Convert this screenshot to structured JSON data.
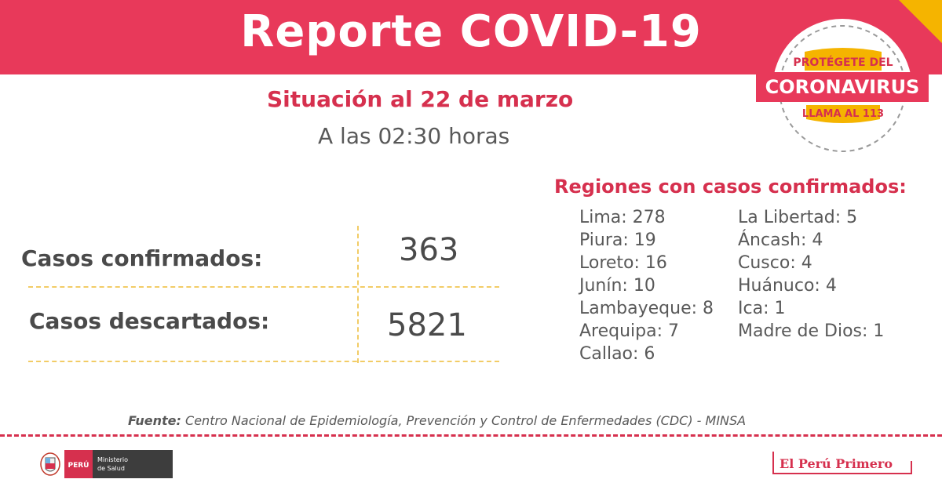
{
  "header": {
    "title": "Reporte COVID-19"
  },
  "situation": {
    "date": "Situación al 22 de marzo",
    "time": "A las 02:30 horas"
  },
  "stats": [
    {
      "label": "Casos confirmados:",
      "value": "363"
    },
    {
      "label": "Casos descartados:",
      "value": "5821"
    }
  ],
  "regions": {
    "title": "Regiones con casos confirmados:",
    "left": [
      "Lima: 278",
      "Piura: 19",
      "Loreto: 16",
      "Junín: 10",
      "Lambayeque: 8",
      "Arequipa: 7",
      "Callao: 6"
    ],
    "right": [
      "La Libertad: 5",
      "Áncash: 4",
      "Cusco: 4",
      "Huánuco: 4",
      "Ica: 1",
      "Madre de Dios: 1"
    ]
  },
  "source": {
    "label": "Fuente:",
    "text": "Centro Nacional de Epidemiología, Prevención y Control de Enfermedades (CDC) - MINSA"
  },
  "badge": {
    "line1": "PROTÉGETE DEL",
    "line2": "CORONAVIRUS",
    "line3": "LLAMA AL 113"
  },
  "logos": {
    "minsa_country": "PERÚ",
    "minsa_ministry_1": "Ministerio",
    "minsa_ministry_2": "de Salud",
    "peru_primero": "El Perú Primero"
  },
  "colors": {
    "brand_red": "#e8395a",
    "accent_yellow": "#f5b400",
    "text_gray": "#595959"
  },
  "icons": [
    "coat-of-arms-icon"
  ]
}
